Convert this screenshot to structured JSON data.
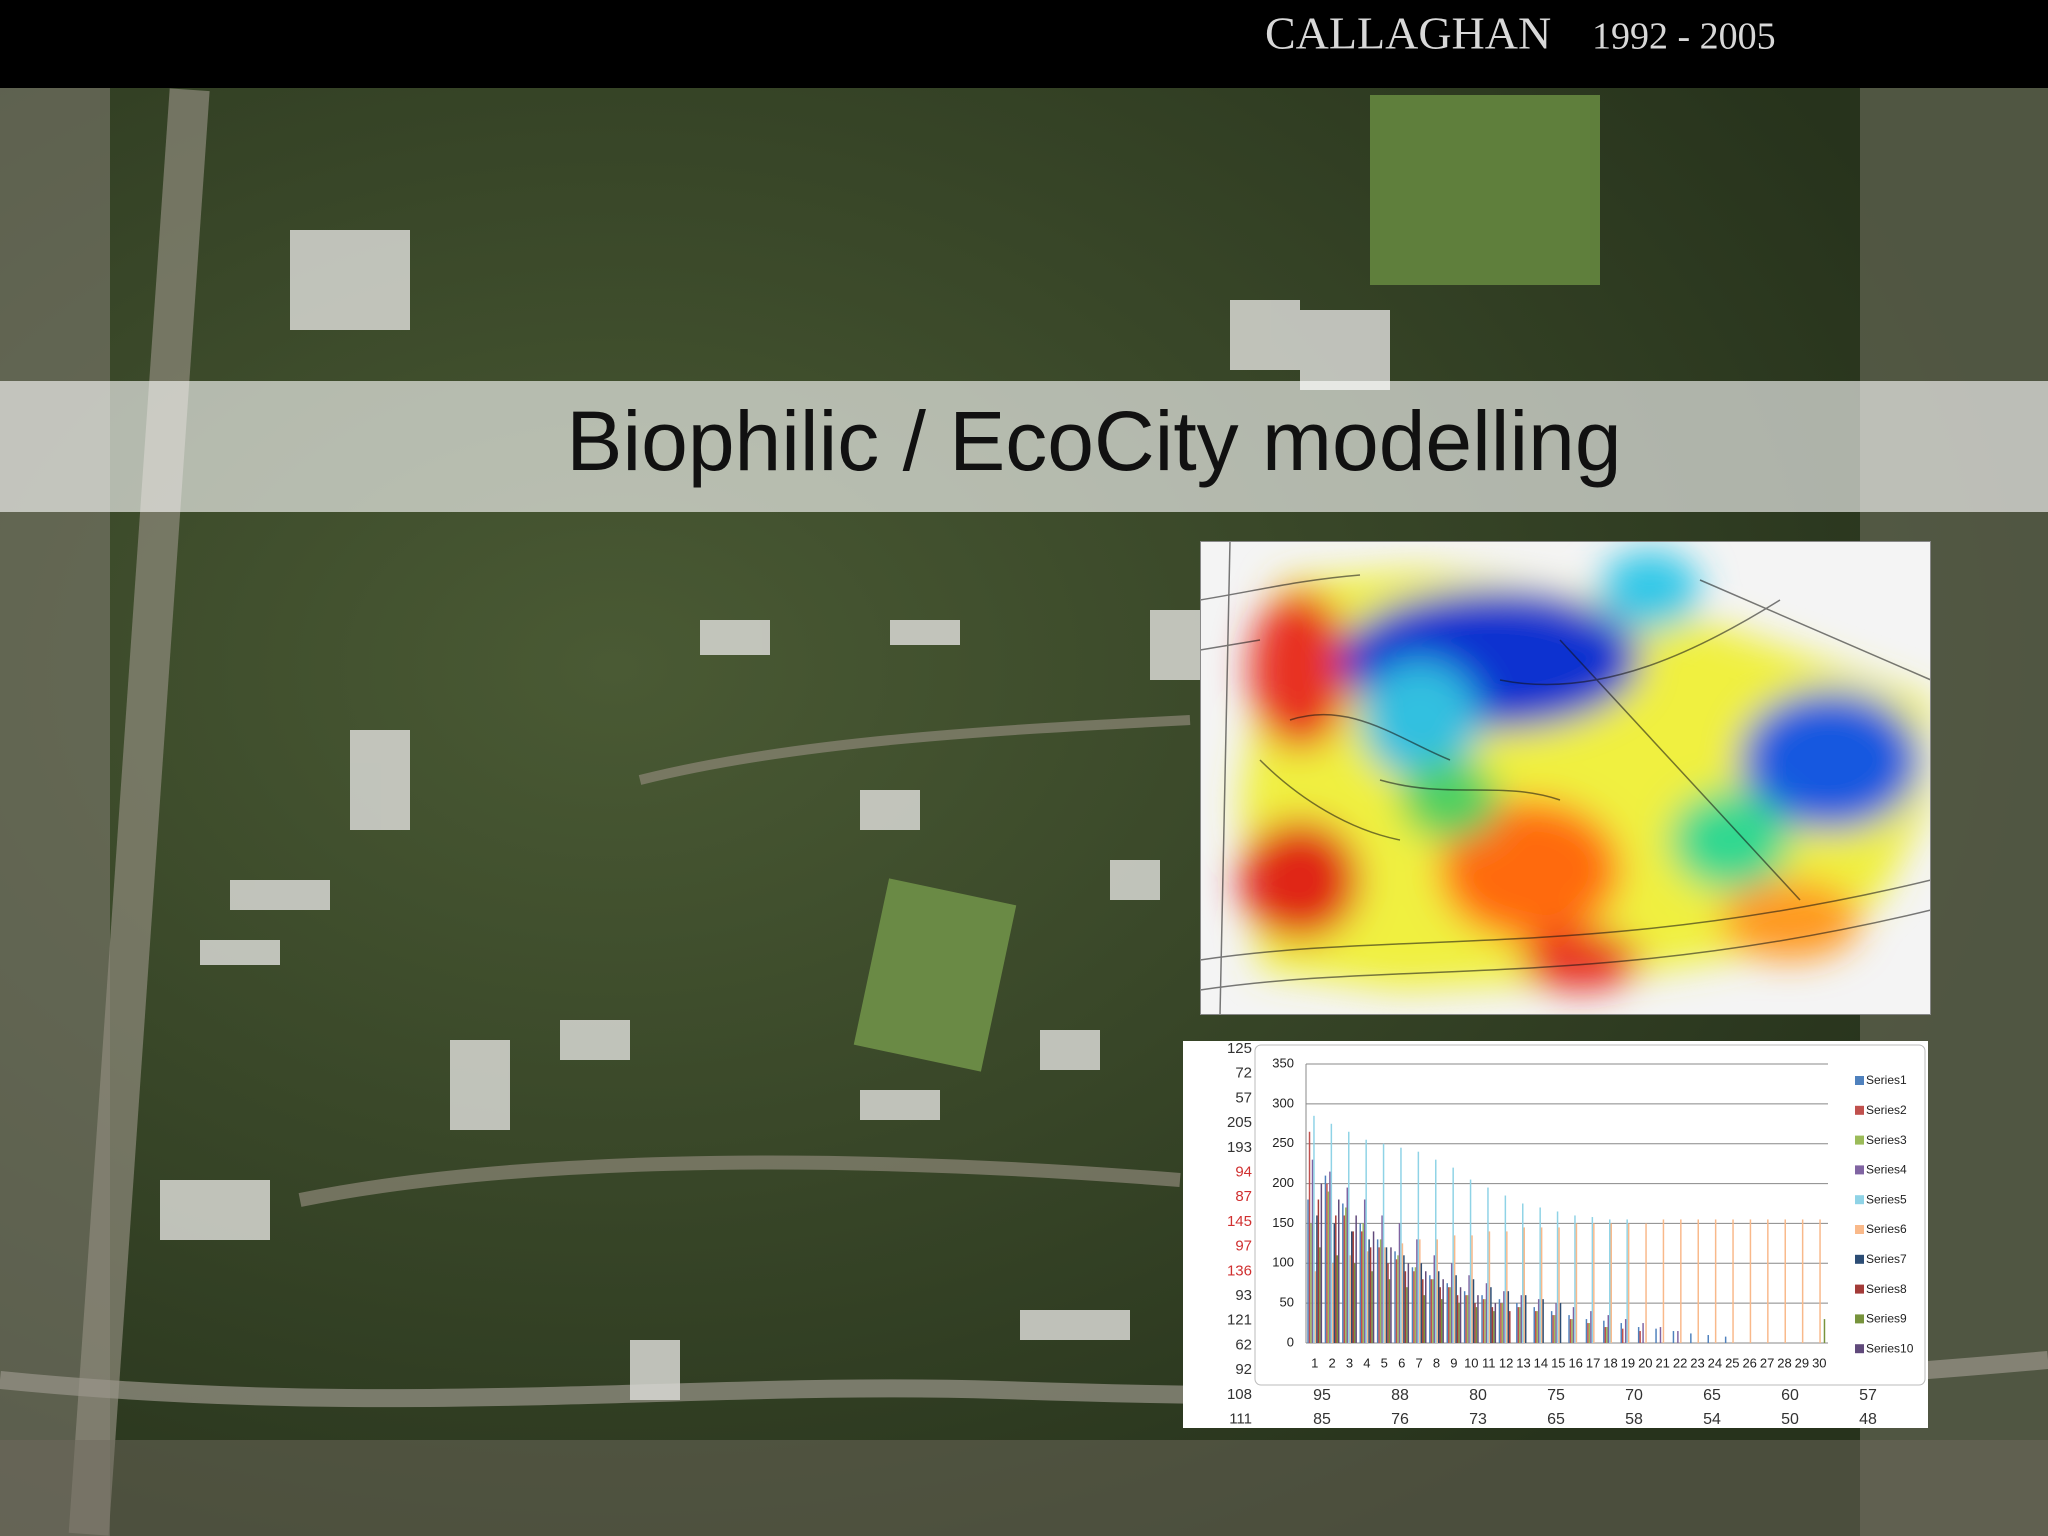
{
  "header": {
    "title": "CALLAGHAN",
    "years": "1992 - 2005"
  },
  "banner": {
    "title": "Biophilic / EcoCity modelling"
  },
  "table": {
    "left_column": [
      125,
      72,
      57,
      205,
      193,
      94,
      87,
      145,
      97,
      136,
      93,
      121,
      62,
      92,
      108,
      111
    ],
    "rows": [
      [
        95,
        88,
        80,
        75,
        70,
        65,
        60,
        57
      ],
      [
        85,
        76,
        73,
        65,
        58,
        54,
        50,
        48
      ]
    ]
  },
  "chart_data": {
    "type": "bar",
    "categories": [
      1,
      2,
      3,
      4,
      5,
      6,
      7,
      8,
      9,
      10,
      11,
      12,
      13,
      14,
      15,
      16,
      17,
      18,
      19,
      20,
      21,
      22,
      23,
      24,
      25,
      26,
      27,
      28,
      29,
      30
    ],
    "ylim": [
      0,
      350
    ],
    "yticks": [
      0,
      50,
      100,
      150,
      200,
      250,
      300,
      350
    ],
    "grid": true,
    "legend": "right",
    "series": [
      {
        "name": "Series1",
        "color": "#4f81bd",
        "values": [
          180,
          210,
          175,
          150,
          130,
          115,
          95,
          85,
          75,
          65,
          60,
          55,
          50,
          45,
          40,
          35,
          30,
          28,
          25,
          20,
          18,
          15,
          12,
          10,
          8,
          null,
          null,
          null,
          null,
          null
        ]
      },
      {
        "name": "Series2",
        "color": "#c0504d",
        "values": [
          265,
          200,
          160,
          140,
          120,
          105,
          90,
          80,
          70,
          60,
          55,
          50,
          45,
          40,
          35,
          30,
          25,
          20,
          18,
          15,
          null,
          null,
          null,
          null,
          null,
          null,
          null,
          null,
          null,
          null
        ]
      },
      {
        "name": "Series3",
        "color": "#9bbb59",
        "values": [
          150,
          190,
          170,
          150,
          130,
          110,
          95,
          80,
          70,
          60,
          55,
          50,
          45,
          40,
          35,
          30,
          25,
          20,
          null,
          null,
          null,
          null,
          null,
          null,
          null,
          null,
          null,
          null,
          null,
          null
        ]
      },
      {
        "name": "Series4",
        "color": "#8064a2",
        "values": [
          230,
          215,
          195,
          180,
          160,
          150,
          130,
          110,
          100,
          85,
          75,
          65,
          60,
          55,
          50,
          45,
          40,
          35,
          30,
          25,
          20,
          15,
          null,
          null,
          null,
          null,
          null,
          null,
          null,
          null
        ]
      },
      {
        "name": "Series5",
        "color": "#8fd3e6",
        "values": [
          285,
          275,
          265,
          255,
          250,
          245,
          240,
          230,
          220,
          205,
          195,
          185,
          175,
          170,
          165,
          160,
          158,
          155,
          155,
          null,
          null,
          null,
          null,
          null,
          null,
          null,
          null,
          null,
          null,
          null
        ]
      },
      {
        "name": "Series6",
        "color": "#f9b98a",
        "values": [
          90,
          100,
          110,
          115,
          120,
          125,
          130,
          130,
          135,
          135,
          140,
          140,
          145,
          145,
          145,
          150,
          150,
          150,
          150,
          150,
          155,
          155,
          155,
          155,
          155,
          155,
          155,
          155,
          155,
          155
        ]
      },
      {
        "name": "Series7",
        "color": "#2c4d75",
        "values": [
          160,
          150,
          140,
          130,
          120,
          110,
          100,
          90,
          85,
          80,
          70,
          65,
          60,
          55,
          50,
          null,
          null,
          null,
          null,
          null,
          null,
          null,
          null,
          null,
          null,
          null,
          null,
          null,
          null,
          null
        ]
      },
      {
        "name": "Series8",
        "color": "#a33b38",
        "values": [
          180,
          160,
          140,
          120,
          100,
          90,
          80,
          70,
          60,
          50,
          45,
          40,
          null,
          null,
          null,
          null,
          null,
          null,
          null,
          null,
          null,
          null,
          null,
          null,
          null,
          null,
          null,
          null,
          null,
          null
        ]
      },
      {
        "name": "Series9",
        "color": "#77933c",
        "values": [
          120,
          110,
          100,
          90,
          80,
          70,
          60,
          55,
          50,
          45,
          40,
          null,
          null,
          null,
          null,
          null,
          null,
          null,
          null,
          null,
          null,
          null,
          null,
          null,
          null,
          null,
          null,
          null,
          null,
          30
        ]
      },
      {
        "name": "Series10",
        "color": "#604a7b",
        "values": [
          200,
          180,
          160,
          140,
          120,
          100,
          90,
          80,
          70,
          60,
          50,
          null,
          null,
          null,
          null,
          null,
          null,
          null,
          null,
          null,
          null,
          null,
          null,
          null,
          null,
          null,
          null,
          null,
          null,
          null
        ]
      }
    ]
  }
}
